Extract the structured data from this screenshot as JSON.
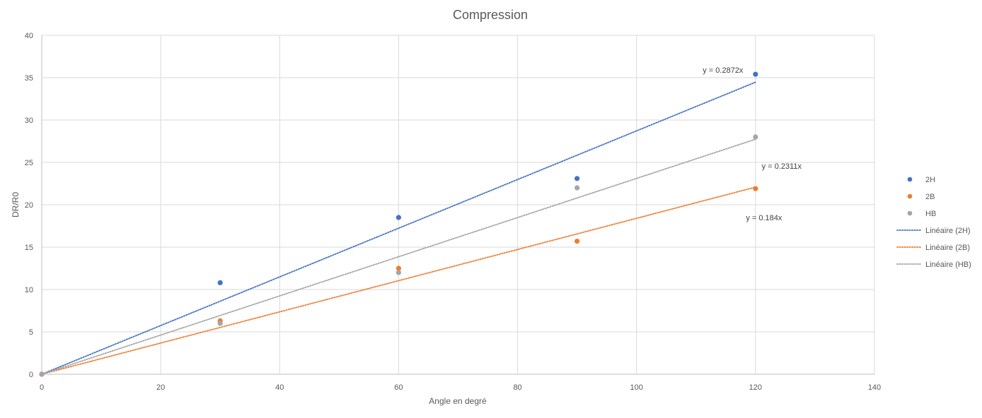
{
  "chart_data": {
    "type": "scatter",
    "title": "Compression",
    "xlabel": "Angle en degré",
    "ylabel": "DR/R0",
    "xlim": [
      0,
      140
    ],
    "ylim": [
      0,
      40
    ],
    "xticks": [
      0,
      20,
      40,
      60,
      80,
      100,
      120,
      140
    ],
    "yticks": [
      0,
      5,
      10,
      15,
      20,
      25,
      30,
      35,
      40
    ],
    "grid": true,
    "legend_position": "right",
    "series": [
      {
        "name": "2H",
        "color": "#4472C4",
        "x": [
          0,
          30,
          60,
          90,
          120
        ],
        "y": [
          0,
          10.8,
          18.5,
          23.1,
          35.4
        ],
        "trendline": {
          "label": "Linéaire (2H)",
          "slope": 0.2872,
          "equation": "y = 0.2872x"
        }
      },
      {
        "name": "2B",
        "color": "#ED7D31",
        "x": [
          0,
          30,
          60,
          90,
          120
        ],
        "y": [
          0,
          6.3,
          12.5,
          15.7,
          21.9
        ],
        "trendline": {
          "label": "Linéaire (2B)",
          "slope": 0.184,
          "equation": "y = 0.184x"
        }
      },
      {
        "name": "HB",
        "color": "#A5A5A5",
        "x": [
          0,
          30,
          60,
          90,
          120
        ],
        "y": [
          0,
          6.0,
          12.0,
          22.0,
          28.0
        ],
        "trendline": {
          "label": "Linéaire (HB)",
          "slope": 0.2311,
          "equation": "y = 0.2311x"
        }
      }
    ]
  }
}
